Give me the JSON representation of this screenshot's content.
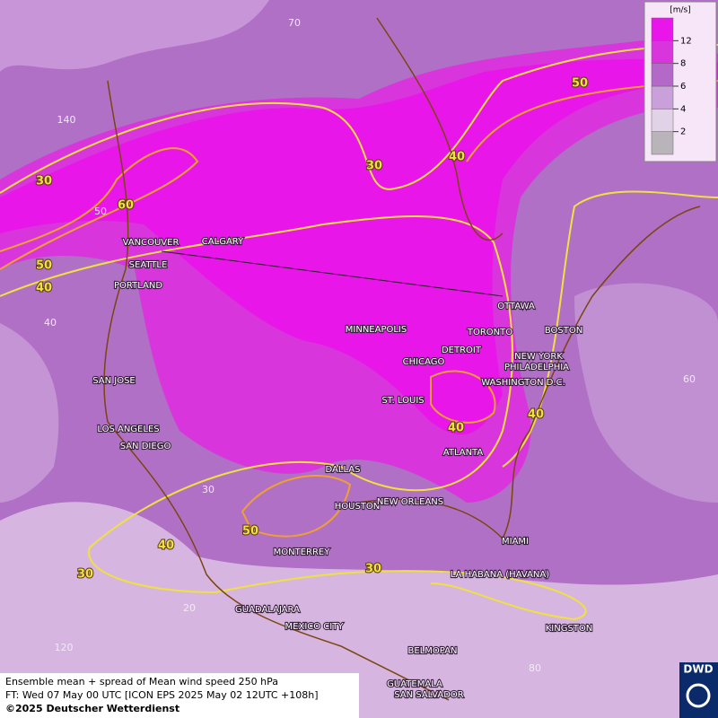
{
  "map": {
    "cities": [
      "VANCOUVER",
      "CALGARY",
      "SEATTLE",
      "PORTLAND",
      "MINNEAPOLIS",
      "TORONTO",
      "OTTAWA",
      "BOSTON",
      "DETROIT",
      "CHICAGO",
      "NEW YORK",
      "PHILADELPHIA",
      "WASHINGTON D.C.",
      "ST. LOUIS",
      "SAN JOSE",
      "LOS ANGELES",
      "SAN DIEGO",
      "ATLANTA",
      "DALLAS",
      "HOUSTON",
      "NEW ORLEANS",
      "MIAMI",
      "MONTERREY",
      "LA HABANA (HAVANA)",
      "GUADALAJARA",
      "MEXICO CITY",
      "KINGSTON",
      "BELMOPAN",
      "GUATEMALA",
      "SAN SALVADOR"
    ],
    "contour_labels": [
      30,
      30,
      40,
      50,
      60,
      50,
      40,
      40,
      40,
      50,
      40,
      30,
      30
    ],
    "grid_labels": [
      70,
      140,
      50,
      40,
      60,
      30,
      20,
      120,
      80
    ],
    "legend": {
      "unit": "[m/s]",
      "ticks": [
        2,
        4,
        6,
        8,
        12
      ],
      "colors": [
        "#b9b4ba",
        "#e2d2e8",
        "#caa0da",
        "#b468c8",
        "#d836dc",
        "#e816e8"
      ]
    },
    "footer": {
      "line1": "Ensemble mean + spread of Mean wind speed 250 hPa",
      "line2": "FT: Wed 07 May 00 UTC [ICON EPS 2025 May 02 12UTC +108h]",
      "line3": "©2025 Deutscher Wetterdienst"
    },
    "logo": "DWD"
  }
}
